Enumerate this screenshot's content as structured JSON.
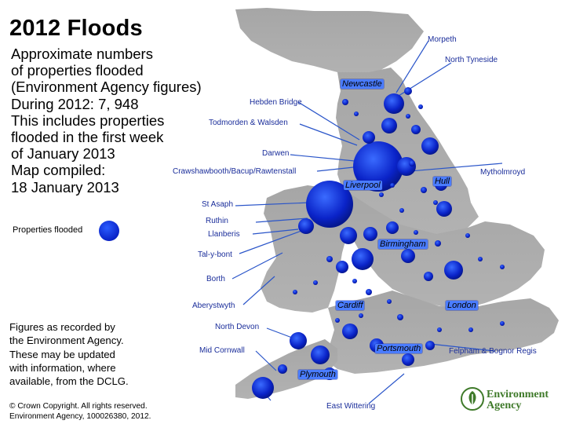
{
  "title": "2012 Floods",
  "info_lines": "Approximate numbers\nof properties flooded\n(Environment Agency figures)\nDuring 2012: 7, 948\nThis includes properties\nflooded in the first week\nof January 2013\nMap compiled:\n18 January 2013",
  "legend": {
    "label": "Properties flooded",
    "color": "#0a23c8"
  },
  "note": "Figures as recorded by\nthe Environment Agency.\nThese may be updated\nwith information, where\navailable, from the DCLG.",
  "copyright": "© Crown Copyright. All rights reserved.\nEnvironment Agency, 100026380, 2012.",
  "logo": {
    "text": "Environment\nAgency",
    "color": "#3f7a2a"
  },
  "map_colors": {
    "land": "#a9a9a9",
    "sea": "#ffffff",
    "markers": "#0a23c8",
    "leader_lines": "#2a55c9"
  },
  "places": {
    "morpeth": "Morpeth",
    "north_tyneside": "North Tyneside",
    "hebden_bridge": "Hebden Bridge",
    "todmorden": "Todmorden & Walsden",
    "darwen": "Darwen",
    "crawshawbooth": "Crawshawbooth/Bacup/Rawtenstall",
    "mytholmroyd": "Mytholmroyd",
    "st_asaph": "St Asaph",
    "ruthin": "Ruthin",
    "llanberis": "Llanberis",
    "tal_y_bont": "Tal-y-bont",
    "borth": "Borth",
    "aberystwyth": "Aberystwyth",
    "north_devon": "North Devon",
    "mid_cornwall": "Mid Cornwall",
    "felpham": "Felpham & Bognor Regis",
    "east_wittering": "East Wittering"
  },
  "cities": {
    "newcastle": "Newcastle",
    "liverpool": "Liverpool",
    "hull": "Hull",
    "birmingham": "Birmingham",
    "cardiff": "Cardiff",
    "london": "London",
    "portsmouth": "Portsmouth",
    "plymouth": "Plymouth"
  }
}
